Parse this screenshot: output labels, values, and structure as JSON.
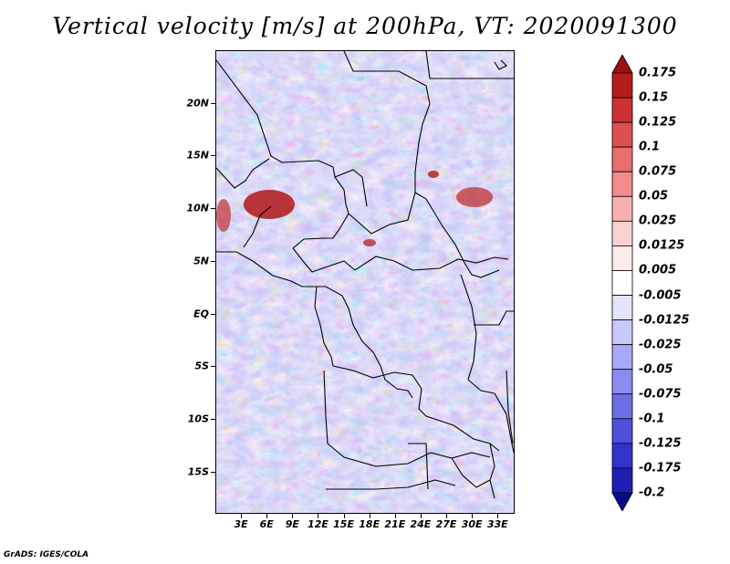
{
  "title": "Vertical velocity [m/s] at 200hPa, VT: 2020091300",
  "footer": "GrADS: IGES/COLA",
  "lat_labels": [
    "20N",
    "15N",
    "10N",
    "5N",
    "EQ",
    "5S",
    "10S",
    "15S"
  ],
  "lat_values": [
    20,
    15,
    10,
    5,
    0,
    -5,
    -10,
    -15
  ],
  "lon_labels": [
    "3E",
    "6E",
    "9E",
    "12E",
    "15E",
    "18E",
    "21E",
    "24E",
    "27E",
    "30E",
    "33E"
  ],
  "lon_values": [
    3,
    6,
    9,
    12,
    15,
    18,
    21,
    24,
    27,
    30,
    33
  ],
  "map_extent": {
    "lon_min": 0,
    "lon_max": 35,
    "lat_min": -19,
    "lat_max": 25
  },
  "colorbar": {
    "labels": [
      "0.175",
      "0.15",
      "0.125",
      "0.1",
      "0.075",
      "0.05",
      "0.025",
      "0.0125",
      "0.005",
      "-0.005",
      "-0.0125",
      "-0.025",
      "-0.05",
      "-0.075",
      "-0.1",
      "-0.125",
      "-0.175",
      "-0.2"
    ],
    "colors": [
      "#a01010",
      "#b71c1c",
      "#cc3232",
      "#dc5050",
      "#e86e6e",
      "#f08c8c",
      "#f7b0b0",
      "#fbd2d2",
      "#fdeaea",
      "#ffffff",
      "#e4e4fd",
      "#c8c8fb",
      "#a8a8f7",
      "#8c8cf0",
      "#6e6ee6",
      "#5050dc",
      "#3232cc",
      "#1e1eb4",
      "#0a0a8c"
    ]
  },
  "colors": {
    "red_patch": "#e87f7f",
    "blue_patch": "#7f7fec",
    "light_blue": "#bcbcf7",
    "dark_red": "#b01010",
    "border": "#000000"
  }
}
